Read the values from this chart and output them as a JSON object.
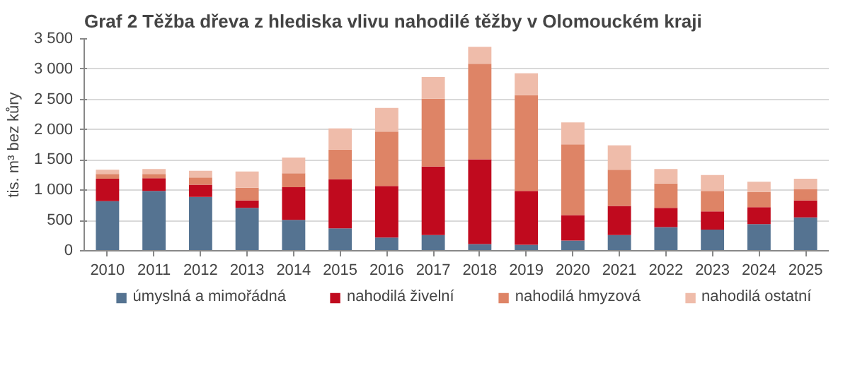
{
  "chart_data": {
    "type": "bar",
    "stacked": true,
    "title": "Graf 2 Těžba dřeva z hlediska vlivu nahodilé těžby v Olomouckém kraji",
    "ylabel": "tis. m³ bez kůry",
    "categories": [
      "2010",
      "2011",
      "2012",
      "2013",
      "2014",
      "2015",
      "2016",
      "2017",
      "2018",
      "2019",
      "2020",
      "2021",
      "2022",
      "2023",
      "2024",
      "2025"
    ],
    "series": [
      {
        "name": "úmyslná a mimořádná",
        "color": "#557391",
        "values": [
          820,
          990,
          890,
          710,
          510,
          370,
          220,
          260,
          110,
          100,
          170,
          260,
          390,
          350,
          440,
          550
        ]
      },
      {
        "name": "nahodilá živelní",
        "color": "#c00a1e",
        "values": [
          370,
          210,
          200,
          120,
          540,
          810,
          850,
          1130,
          1400,
          890,
          420,
          480,
          320,
          300,
          280,
          280
        ]
      },
      {
        "name": "nahodilá hmyzová",
        "color": "#de8466",
        "values": [
          80,
          70,
          120,
          210,
          230,
          490,
          900,
          1120,
          1580,
          1580,
          1170,
          600,
          400,
          340,
          250,
          190
        ]
      },
      {
        "name": "nahodilá ostatní",
        "color": "#efbcaa",
        "values": [
          70,
          80,
          110,
          270,
          260,
          350,
          390,
          360,
          280,
          360,
          360,
          400,
          240,
          260,
          170,
          170
        ]
      }
    ],
    "ylim": [
      0,
      3500
    ],
    "yticks": [
      0,
      500,
      {
        "value": 1000,
        "label": "1 000"
      },
      {
        "value": 1500,
        "label": "1 500"
      },
      {
        "value": 2000,
        "label": "2 000"
      },
      {
        "value": 2500,
        "label": "2 500"
      },
      {
        "value": 3000,
        "label": "3 000"
      },
      {
        "value": 3500,
        "label": "3 500"
      }
    ],
    "grid": "y",
    "legend": "bottom"
  }
}
